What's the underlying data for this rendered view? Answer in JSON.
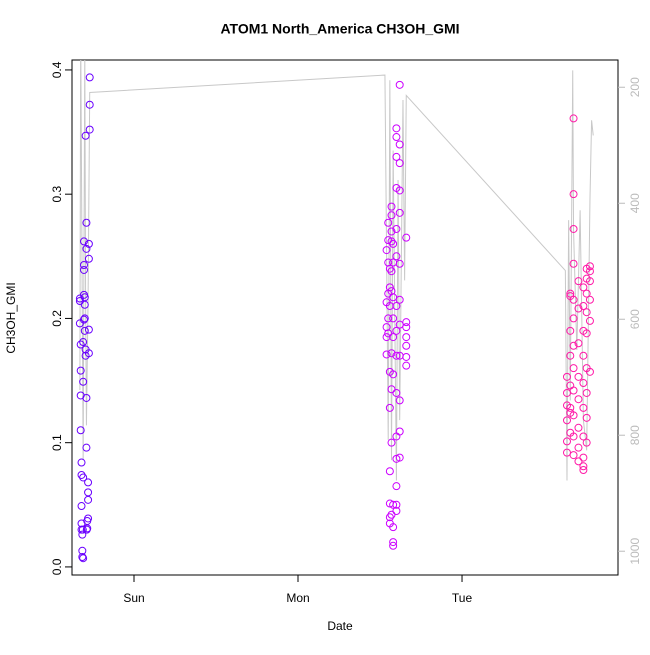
{
  "chart_data": {
    "type": "scatter",
    "title": "ATOM1 North_America CH3OH_GMI",
    "x_label": "Date",
    "y_label": "CH3OH_GMI",
    "xlim": [
      0.622,
      3.951
    ],
    "xticks": [
      {
        "value": 1,
        "label": "Sun"
      },
      {
        "value": 2,
        "label": "Mon"
      },
      {
        "value": 3,
        "label": "Tue"
      }
    ],
    "ylim": [
      -0.0065,
      0.408
    ],
    "yticks": [
      {
        "value": 0,
        "label": "0.0"
      },
      0.1,
      0.2,
      0.3,
      0.4
    ],
    "y2lim": [
      1041,
      153
    ],
    "y2ticks": [
      200,
      400,
      600,
      800,
      1000
    ],
    "series": [
      {
        "color": "#6a00ff",
        "x": [
          0.67,
          0.67,
          0.67,
          0.675,
          0.675,
          0.675,
          0.675,
          0.68,
          0.68,
          0.68,
          0.68,
          0.68,
          0.685,
          0.685,
          0.685,
          0.69,
          0.69,
          0.69,
          0.69,
          0.695,
          0.695,
          0.695,
          0.695,
          0.7,
          0.7,
          0.7,
          0.7,
          0.705,
          0.705,
          0.705,
          0.71,
          0.71,
          0.71,
          0.71,
          0.715,
          0.715,
          0.72,
          0.72,
          0.72,
          0.72,
          0.725,
          0.725,
          0.725,
          0.725,
          0.73,
          0.73,
          0.73,
          0.688,
          0.712,
          0.695
        ],
        "values": [
          0.216,
          0.214,
          0.196,
          0.179,
          0.158,
          0.138,
          0.11,
          0.084,
          0.074,
          0.049,
          0.035,
          0.03,
          0.026,
          0.013,
          0.008,
          0.007,
          0.072,
          0.149,
          0.181,
          0.262,
          0.243,
          0.239,
          0.219,
          0.217,
          0.211,
          0.2,
          0.19,
          0.175,
          0.17,
          0.347,
          0.277,
          0.256,
          0.136,
          0.096,
          0.037,
          0.031,
          0.039,
          0.06,
          0.054,
          0.068,
          0.191,
          0.172,
          0.248,
          0.26,
          0.352,
          0.372,
          0.394,
          0.03,
          0.03,
          0.199
        ]
      },
      {
        "color": "#cc00ff",
        "x": [
          2.54,
          2.54,
          2.54,
          2.54,
          2.54,
          2.55,
          2.55,
          2.55,
          2.55,
          2.55,
          2.55,
          2.56,
          2.56,
          2.56,
          2.56,
          2.56,
          2.56,
          2.56,
          2.56,
          2.56,
          2.57,
          2.57,
          2.57,
          2.57,
          2.57,
          2.57,
          2.57,
          2.57,
          2.57,
          2.57,
          2.58,
          2.58,
          2.58,
          2.58,
          2.58,
          2.58,
          2.58,
          2.58,
          2.58,
          2.58,
          2.6,
          2.6,
          2.6,
          2.6,
          2.6,
          2.6,
          2.6,
          2.6,
          2.6,
          2.6,
          2.6,
          2.6,
          2.6,
          2.6,
          2.6,
          2.62,
          2.62,
          2.62,
          2.62,
          2.62,
          2.62,
          2.62,
          2.62,
          2.62,
          2.62,
          2.62,
          2.62,
          2.66,
          2.66,
          2.66,
          2.66,
          2.66,
          2.66,
          2.66
        ],
        "values": [
          0.255,
          0.213,
          0.193,
          0.185,
          0.171,
          0.277,
          0.263,
          0.245,
          0.22,
          0.2,
          0.188,
          0.24,
          0.225,
          0.21,
          0.157,
          0.128,
          0.077,
          0.051,
          0.04,
          0.035,
          0.29,
          0.283,
          0.27,
          0.262,
          0.238,
          0.222,
          0.172,
          0.143,
          0.1,
          0.042,
          0.26,
          0.245,
          0.217,
          0.2,
          0.185,
          0.155,
          0.02,
          0.017,
          0.032,
          0.05,
          0.353,
          0.346,
          0.33,
          0.305,
          0.272,
          0.25,
          0.21,
          0.19,
          0.17,
          0.14,
          0.105,
          0.087,
          0.065,
          0.05,
          0.045,
          0.388,
          0.34,
          0.325,
          0.303,
          0.285,
          0.244,
          0.215,
          0.195,
          0.17,
          0.134,
          0.109,
          0.088,
          0.265,
          0.197,
          0.193,
          0.185,
          0.178,
          0.169,
          0.162
        ]
      },
      {
        "color": "#ff1aa8",
        "x": [
          3.64,
          3.64,
          3.64,
          3.64,
          3.64,
          3.64,
          3.66,
          3.66,
          3.66,
          3.66,
          3.66,
          3.66,
          3.66,
          3.66,
          3.68,
          3.68,
          3.68,
          3.68,
          3.68,
          3.68,
          3.68,
          3.68,
          3.68,
          3.68,
          3.68,
          3.68,
          3.71,
          3.71,
          3.71,
          3.71,
          3.71,
          3.71,
          3.71,
          3.71,
          3.74,
          3.74,
          3.74,
          3.74,
          3.74,
          3.74,
          3.74,
          3.74,
          3.74,
          3.74,
          3.76,
          3.76,
          3.76,
          3.76,
          3.76,
          3.76,
          3.76,
          3.76,
          3.76,
          3.78,
          3.78,
          3.78,
          3.78,
          3.78,
          3.78
        ],
        "values": [
          0.153,
          0.14,
          0.13,
          0.118,
          0.101,
          0.092,
          0.22,
          0.218,
          0.19,
          0.17,
          0.146,
          0.128,
          0.124,
          0.108,
          0.361,
          0.3,
          0.272,
          0.244,
          0.215,
          0.2,
          0.178,
          0.16,
          0.142,
          0.122,
          0.105,
          0.09,
          0.23,
          0.208,
          0.18,
          0.153,
          0.135,
          0.112,
          0.096,
          0.085,
          0.225,
          0.21,
          0.19,
          0.17,
          0.148,
          0.128,
          0.105,
          0.088,
          0.081,
          0.078,
          0.24,
          0.232,
          0.22,
          0.205,
          0.188,
          0.16,
          0.14,
          0.12,
          0.1,
          0.242,
          0.238,
          0.23,
          0.215,
          0.198,
          0.157
        ]
      },
      {
        "type": "line",
        "axis": "y2",
        "color": "#c8c8c8",
        "x": [
          0.67,
          0.675,
          0.69,
          0.7,
          0.705,
          0.71,
          0.72,
          0.73,
          2.53,
          2.54,
          2.55,
          2.56,
          2.57,
          2.58,
          2.6,
          2.61,
          2.62,
          2.64,
          2.65,
          2.66,
          3.63,
          3.64,
          3.65,
          3.66,
          3.675,
          3.68,
          3.7,
          3.72,
          3.74,
          3.76,
          3.78,
          3.79,
          3.8
        ],
        "values": [
          722,
          100,
          843,
          140,
          567,
          783,
          567,
          209,
          179,
          481,
          808,
          188,
          843,
          309,
          878,
          360,
          774,
          222,
          533,
          214,
          516,
          878,
          429,
          740,
          171,
          447,
          653,
          412,
          774,
          826,
          395,
          257,
          283
        ]
      }
    ]
  }
}
